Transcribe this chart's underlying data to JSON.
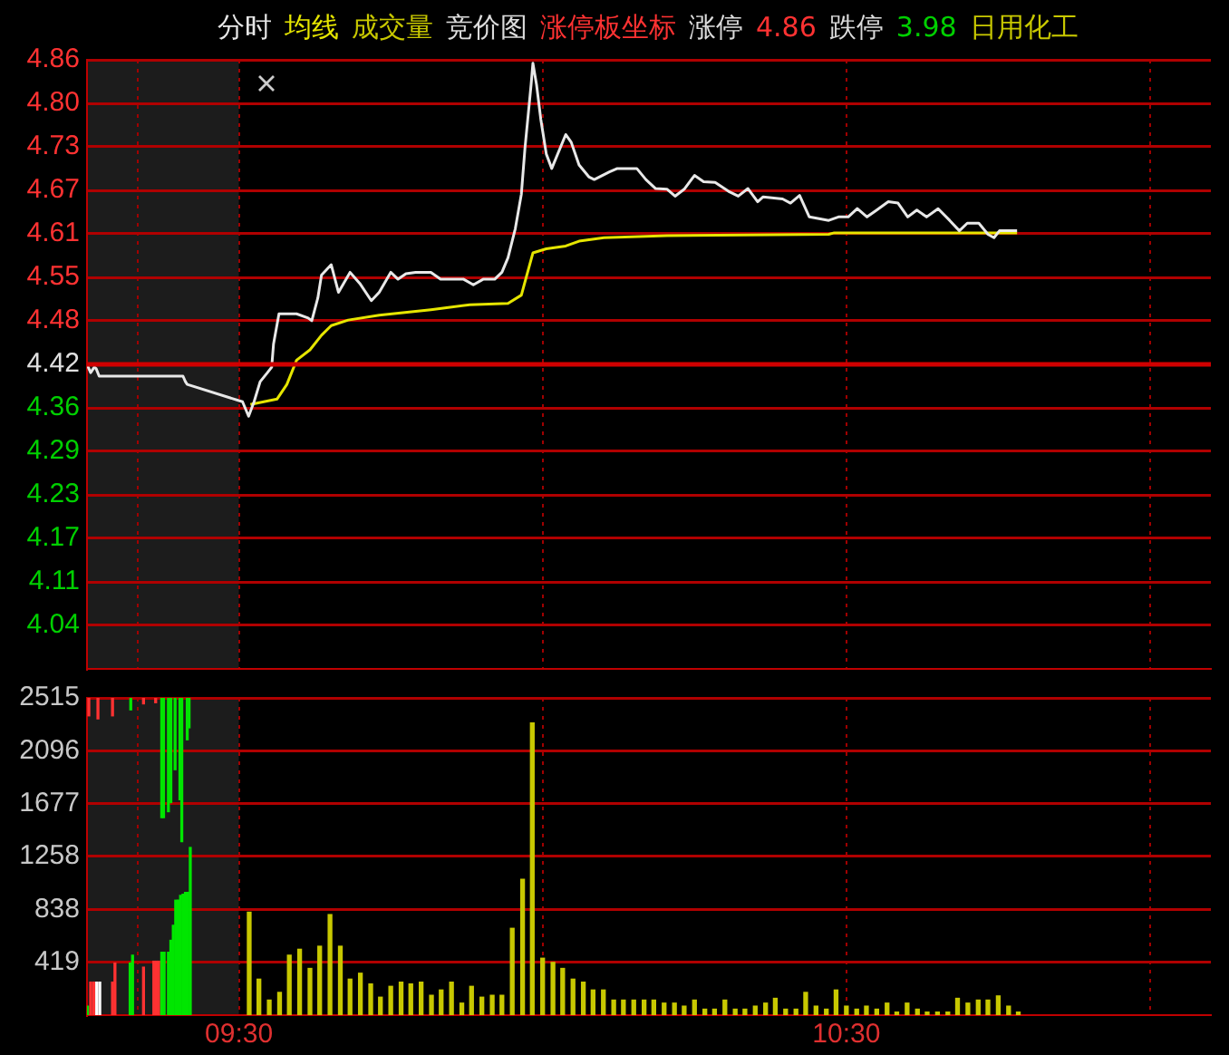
{
  "chart_data": [
    {
      "type": "line",
      "legend": "top left",
      "tick_labels": "y",
      "grid": true,
      "xlim": [
        9.25,
        11.1
      ],
      "xticks": [
        {
          "value": 9.3333,
          "label": null
        },
        {
          "value": 9.5,
          "label": null
        },
        {
          "value": 10,
          "label": null
        },
        {
          "value": 10.5,
          "label": null
        },
        {
          "value": 11,
          "label": null
        }
      ],
      "ylim": [
        3.98,
        4.86
      ],
      "yticks": [
        4.86,
        {
          "value": 4.7971,
          "label": "4.80"
        },
        {
          "value": 4.7343,
          "label": "4.73"
        },
        {
          "value": 4.6714,
          "label": "4.67"
        },
        {
          "value": 4.6086,
          "label": "4.61"
        },
        {
          "value": 4.5457,
          "label": "4.55"
        },
        {
          "value": 4.4829,
          "label": "4.48"
        },
        4.42,
        {
          "value": 4.3571,
          "label": "4.36"
        },
        {
          "value": 4.2943,
          "label": "4.29"
        },
        {
          "value": 4.2314,
          "label": "4.23"
        },
        {
          "value": 4.1686,
          "label": "4.17"
        },
        {
          "value": 4.1057,
          "label": "4.11"
        },
        {
          "value": 4.0429,
          "label": "4.04"
        }
      ],
      "ref_lines": [
        {
          "axis": "y",
          "value": 4.42,
          "color": "#d00000"
        }
      ],
      "bands": [
        {
          "axis": "x",
          "from": 9.25,
          "to": 9.5,
          "color": "#1c1c1c"
        }
      ],
      "annotations": [
        "成交量",
        "竞价图",
        "涨停板坐标",
        "涨停",
        "4.86",
        "跌停",
        "3.98",
        "日用化工"
      ],
      "series": [
        {
          "name": "分时",
          "color": "#e8e8e8",
          "x": [
            9.25,
            9.256,
            9.262,
            9.265,
            9.27,
            9.408,
            9.412,
            9.415,
            9.506,
            9.516,
            9.525,
            9.535,
            9.547,
            9.554,
            9.557,
            9.566,
            9.595,
            9.614,
            9.62,
            9.63,
            9.636,
            9.652,
            9.664,
            9.683,
            9.699,
            9.718,
            9.731,
            9.75,
            9.762,
            9.775,
            9.791,
            9.816,
            9.832,
            9.87,
            9.886,
            9.902,
            9.921,
            9.933,
            9.943,
            9.955,
            9.965,
            9.971,
            9.981,
            9.984,
            9.99,
            9.997,
            10.006,
            10.015,
            10.038,
            10.047,
            10.06,
            10.076,
            10.085,
            10.11,
            10.123,
            10.155,
            10.17,
            10.186,
            10.205,
            10.218,
            10.233,
            10.25,
            10.265,
            10.284,
            10.306,
            10.322,
            10.338,
            10.354,
            10.363,
            10.395,
            10.408,
            10.423,
            10.439,
            10.471,
            10.487,
            10.503,
            10.518,
            10.534,
            10.55,
            10.569,
            10.585,
            10.601,
            10.616,
            10.632,
            10.651,
            10.67,
            10.686,
            10.699,
            10.718,
            10.733,
            10.743,
            10.752,
            10.781
          ],
          "values": [
            4.42,
            4.408,
            4.416,
            4.414,
            4.403,
            4.403,
            4.395,
            4.391,
            4.366,
            4.345,
            4.366,
            4.395,
            4.408,
            4.416,
            4.449,
            4.493,
            4.493,
            4.487,
            4.483,
            4.516,
            4.549,
            4.564,
            4.524,
            4.553,
            4.537,
            4.512,
            4.524,
            4.553,
            4.543,
            4.551,
            4.553,
            4.553,
            4.543,
            4.543,
            4.535,
            4.543,
            4.543,
            4.553,
            4.574,
            4.616,
            4.666,
            4.733,
            4.824,
            4.855,
            4.824,
            4.774,
            4.724,
            4.703,
            4.752,
            4.741,
            4.708,
            4.691,
            4.687,
            4.698,
            4.703,
            4.703,
            4.687,
            4.674,
            4.673,
            4.663,
            4.673,
            4.693,
            4.684,
            4.683,
            4.67,
            4.663,
            4.674,
            4.655,
            4.662,
            4.659,
            4.653,
            4.664,
            4.633,
            4.628,
            4.633,
            4.633,
            4.645,
            4.633,
            4.643,
            4.655,
            4.653,
            4.633,
            4.643,
            4.633,
            4.645,
            4.628,
            4.613,
            4.624,
            4.624,
            4.608,
            4.603,
            4.613,
            4.613
          ]
        },
        {
          "name": "均线",
          "color": "#e6e600",
          "x": [
            9.519,
            9.563,
            9.579,
            9.595,
            9.617,
            9.636,
            9.652,
            9.68,
            9.731,
            9.816,
            9.88,
            9.943,
            9.965,
            9.974,
            9.984,
            10.006,
            10.038,
            10.06,
            10.101,
            10.205,
            10.471,
            10.48,
            10.781
          ],
          "values": [
            4.362,
            4.37,
            4.391,
            4.426,
            4.441,
            4.462,
            4.476,
            4.484,
            4.491,
            4.499,
            4.506,
            4.508,
            4.52,
            4.549,
            4.581,
            4.587,
            4.591,
            4.598,
            4.603,
            4.606,
            4.608,
            4.61,
            4.61
          ]
        }
      ]
    },
    {
      "type": "bar",
      "grid": true,
      "xlim": [
        9.25,
        11.1
      ],
      "xticks": [
        {
          "value": 9.3333,
          "label": null
        },
        {
          "value": 9.5,
          "label": "09:30"
        },
        {
          "value": 10,
          "label": null
        },
        {
          "value": 10.5,
          "label": "10:30"
        },
        {
          "value": 11,
          "label": null
        }
      ],
      "ylim": [
        0,
        2515
      ],
      "yticks": [
        419,
        838,
        1258,
        1677,
        2096,
        2515
      ],
      "bands": [
        {
          "axis": "x",
          "from": 9.25,
          "to": 9.5,
          "color": "#1c1c1c"
        }
      ],
      "series": [
        {
          "color": "#c8c800",
          "x": [
            9.517,
            9.533,
            9.55,
            9.567,
            9.583,
            9.6,
            9.617,
            9.633,
            9.65,
            9.667,
            9.683,
            9.7,
            9.717,
            9.733,
            9.75,
            9.767,
            9.783,
            9.8,
            9.817,
            9.833,
            9.85,
            9.867,
            9.883,
            9.9,
            9.917,
            9.933,
            9.95,
            9.967,
            9.983,
            10,
            10.017,
            10.033,
            10.05,
            10.067,
            10.083,
            10.1,
            10.117,
            10.133,
            10.15,
            10.167,
            10.183,
            10.2,
            10.217,
            10.233,
            10.25,
            10.267,
            10.283,
            10.3,
            10.317,
            10.333,
            10.35,
            10.367,
            10.383,
            10.4,
            10.417,
            10.433,
            10.45,
            10.467,
            10.483,
            10.5,
            10.517,
            10.533,
            10.55,
            10.567,
            10.583,
            10.6,
            10.617,
            10.633,
            10.65,
            10.667,
            10.683,
            10.7,
            10.717,
            10.733,
            10.75,
            10.767,
            10.783
          ],
          "values": [
            816,
            285,
            119,
            180,
            475,
            522,
            370,
            546,
            797,
            546,
            285,
            332,
            247,
            142,
            228,
            261,
            247,
            261,
            157,
            199,
            261,
            95,
            228,
            142,
            157,
            157,
            688,
            1077,
            2316,
            451,
            418,
            370,
            285,
            261,
            199,
            199,
            119,
            119,
            119,
            119,
            119,
            95,
            95,
            71,
            119,
            47,
            47,
            119,
            47,
            47,
            71,
            95,
            133,
            47,
            47,
            180,
            71,
            47,
            199,
            71,
            47,
            71,
            47,
            95,
            24,
            95,
            47,
            24,
            24,
            24,
            133,
            95,
            119,
            119,
            152,
            71,
            24
          ]
        },
        {
          "x": [
            9.251,
            9.256,
            9.261,
            9.266,
            9.271,
            9.292,
            9.296,
            9.321,
            9.325,
            9.343,
            9.36,
            9.364,
            9.368,
            9.373,
            9.377,
            9.384,
            9.388,
            9.392,
            9.396,
            9.4,
            9.404,
            9.408,
            9.412,
            9.416,
            9.42
          ],
          "colors": [
            "#00e600",
            "#ff3232",
            "#ff3232",
            "#ffffff",
            "#ffffff",
            "#ff3232",
            "#ff3232",
            "#00e600",
            "#00e600",
            "#ff3232",
            "#ff3232",
            "#ff3232",
            "#ff3232",
            "#00e600",
            "#00e600",
            "#00e600",
            "#00e600",
            "#00e600",
            "#00e600",
            "#00e600",
            "#00e600",
            "#00e600",
            "#00e600",
            "#00e600",
            "#00e600"
          ],
          "values": [
            71,
            261,
            261,
            261,
            261,
            261,
            413,
            413,
            475,
            380,
            427,
            427,
            427,
            498,
            498,
            498,
            593,
            712,
            911,
            911,
            949,
            958,
            973,
            973,
            1329
          ]
        },
        {
          "x": [
            9.253,
            9.268,
            9.292,
            9.322,
            9.343,
            9.363,
            9.373,
            9.376,
            9.384,
            9.388,
            9.395,
            9.403,
            9.406,
            9.415,
            9.418
          ],
          "colors": [
            "#ff3232",
            "#ff3232",
            "#ff3232",
            "#00e600",
            "#ff3232",
            "#ff3232",
            "#00e600",
            "#00e600",
            "#00e600",
            "#00e600",
            "#00e600",
            "#00e600",
            "#00e600",
            "#00e600",
            "#00e600"
          ],
          "base": [
            2373,
            2349,
            2373,
            2420,
            2468,
            2477,
            1566,
            1566,
            1613,
            1685,
            1946,
            1708,
            1376,
            2183,
            2278
          ],
          "values": [
            142,
            166,
            142,
            95,
            47,
            38,
            949,
            949,
            902,
            830,
            569,
            807,
            1139,
            332,
            237
          ]
        }
      ]
    }
  ]
}
